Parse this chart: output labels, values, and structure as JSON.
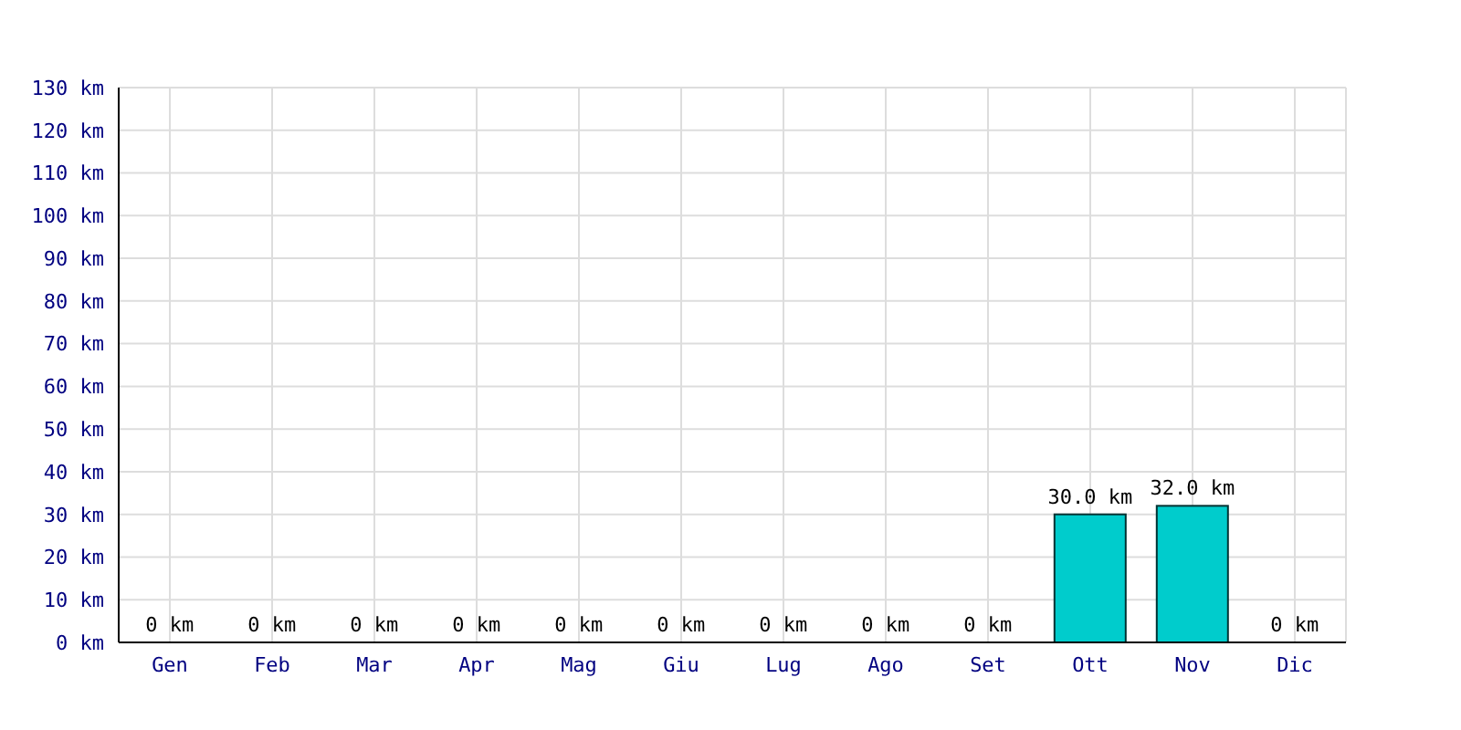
{
  "chart_data": {
    "type": "bar",
    "categories": [
      "Gen",
      "Feb",
      "Mar",
      "Apr",
      "Mag",
      "Giu",
      "Lug",
      "Ago",
      "Set",
      "Ott",
      "Nov",
      "Dic"
    ],
    "values": [
      0,
      0,
      0,
      0,
      0,
      0,
      0,
      0,
      0,
      30,
      32,
      0
    ],
    "value_labels": [
      "0 km",
      "0 km",
      "0 km",
      "0 km",
      "0 km",
      "0 km",
      "0 km",
      "0 km",
      "0 km",
      "30.0 km",
      "32.0 km",
      "0 km"
    ],
    "color": "#00cccc",
    "ylim": [
      0,
      130
    ],
    "yticks": [
      {
        "value": 0,
        "label": "0 km"
      },
      {
        "value": 10,
        "label": "10 km"
      },
      {
        "value": 20,
        "label": "20 km"
      },
      {
        "value": 30,
        "label": "30 km"
      },
      {
        "value": 40,
        "label": "40 km"
      },
      {
        "value": 50,
        "label": "50 km"
      },
      {
        "value": 60,
        "label": "60 km"
      },
      {
        "value": 70,
        "label": "70 km"
      },
      {
        "value": 80,
        "label": "80 km"
      },
      {
        "value": 90,
        "label": "90 km"
      },
      {
        "value": 100,
        "label": "100 km"
      },
      {
        "value": 110,
        "label": "110 km"
      },
      {
        "value": 120,
        "label": "120 km"
      },
      {
        "value": 130,
        "label": "130 km"
      }
    ],
    "grid": true
  }
}
